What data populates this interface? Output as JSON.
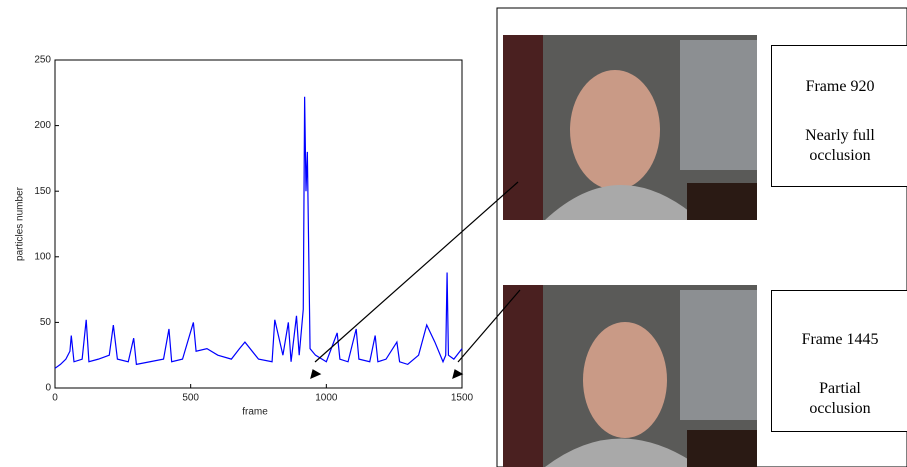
{
  "chart_data": {
    "type": "line",
    "x_label": "frame",
    "y_label": "particles number",
    "x": [
      0,
      20,
      40,
      55,
      60,
      70,
      100,
      115,
      125,
      160,
      200,
      215,
      230,
      270,
      290,
      300,
      350,
      400,
      420,
      430,
      470,
      510,
      520,
      560,
      600,
      650,
      680,
      700,
      750,
      800,
      810,
      840,
      860,
      870,
      890,
      900,
      915,
      920,
      925,
      930,
      940,
      960,
      1000,
      1040,
      1050,
      1080,
      1110,
      1120,
      1160,
      1180,
      1190,
      1220,
      1260,
      1270,
      1300,
      1340,
      1370,
      1400,
      1430,
      1440,
      1445,
      1450,
      1470,
      1500
    ],
    "series": [
      {
        "color": "#0000ff",
        "values": [
          15,
          18,
          22,
          28,
          40,
          20,
          22,
          52,
          20,
          22,
          25,
          48,
          22,
          20,
          38,
          18,
          20,
          22,
          45,
          20,
          22,
          50,
          28,
          30,
          25,
          22,
          30,
          35,
          22,
          20,
          52,
          25,
          50,
          20,
          55,
          25,
          60,
          222,
          150,
          180,
          30,
          25,
          20,
          42,
          22,
          20,
          45,
          22,
          20,
          40,
          20,
          22,
          35,
          20,
          18,
          25,
          48,
          35,
          20,
          25,
          88,
          25,
          22,
          30
        ]
      }
    ],
    "xlim": [
      0,
      1500
    ],
    "xticks": [
      0,
      500,
      1000,
      1500
    ],
    "ylim": [
      0,
      250
    ],
    "yticks": [
      0,
      50,
      100,
      150,
      200,
      250
    ]
  },
  "annotations": [
    {
      "frame": "Frame 920",
      "label": "Nearly full occlusion"
    },
    {
      "frame": "Frame 1445",
      "label": "Partial occlusion"
    }
  ]
}
